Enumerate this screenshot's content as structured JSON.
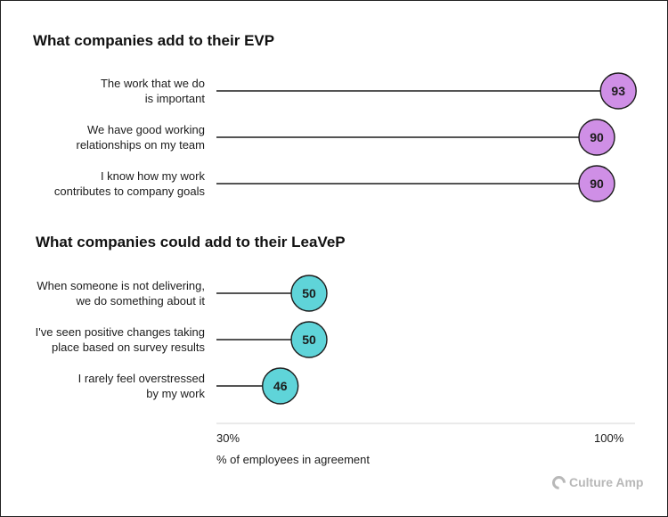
{
  "chart_data": [
    {
      "type": "lollipop",
      "title": "What companies add to their EVP",
      "color": "#cf8fe6",
      "categories": [
        "The work that we do\nis important",
        "We have good working\nrelationships on my team",
        "I know how my work\ncontributes to company goals"
      ],
      "values": [
        93,
        90,
        90
      ]
    },
    {
      "type": "lollipop",
      "title": "What companies could add to their LeaVeP",
      "color": "#5fd4d9",
      "categories": [
        "When someone is not delivering,\nwe do something about it",
        "I've seen positive changes taking\nplace based on survey results",
        "I rarely feel overstressed\nby my work"
      ],
      "values": [
        50,
        50,
        46
      ]
    }
  ],
  "axis": {
    "xlim": [
      30,
      100
    ],
    "tick_labels": [
      "30%",
      "100%"
    ],
    "xlabel": "% of employees in agreement"
  },
  "brand": {
    "logo_text": "Culture Amp"
  }
}
